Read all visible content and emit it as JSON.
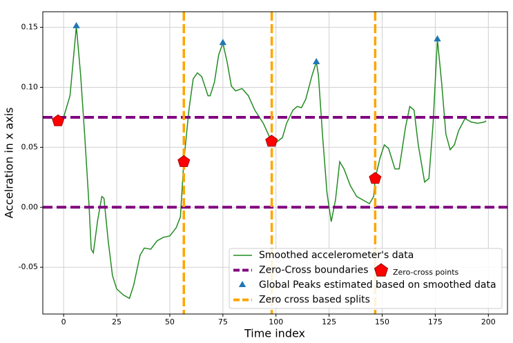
{
  "chart_data": {
    "type": "line",
    "xlabel": "Time index",
    "ylabel": "Accelration in x axis",
    "xlim": [
      -9.8,
      209
    ],
    "ylim": [
      -0.089,
      0.163
    ],
    "xticks": [
      0,
      25,
      50,
      75,
      100,
      125,
      150,
      175,
      200
    ],
    "yticks": [
      {
        "value": -0.05,
        "label": "-0.05"
      },
      {
        "value": 0,
        "label": "0.00"
      },
      {
        "value": 0.05,
        "label": "0.05"
      },
      {
        "value": 0.1,
        "label": "0.10"
      },
      {
        "value": 0.15,
        "label": "0.15"
      }
    ],
    "grid": true,
    "legend": "lower right",
    "series": [
      {
        "type": "line",
        "name": "Smoothed accelerometer's data",
        "color": "#228b22",
        "x": [
          0,
          3,
          6,
          8,
          10,
          12,
          13,
          14,
          16,
          18,
          19,
          21,
          23,
          25,
          28,
          31,
          33,
          36,
          38,
          41,
          44,
          47,
          50,
          53,
          55,
          56.6,
          59,
          61,
          63,
          65,
          68,
          69,
          71,
          73,
          75,
          77,
          79,
          81,
          84,
          87,
          90,
          94,
          97.9,
          100,
          103,
          105,
          108,
          110,
          112,
          114,
          117,
          119,
          120,
          122,
          124,
          126,
          128,
          130,
          132,
          135,
          138,
          141,
          144,
          146,
          146.7,
          149,
          151,
          153,
          156,
          158,
          161,
          163,
          165,
          167,
          170,
          172,
          174,
          176,
          178,
          180,
          182,
          184,
          186,
          189,
          192,
          195,
          198,
          199
        ],
        "values": [
          0.075,
          0.093,
          0.151,
          0.11,
          0.058,
          0,
          -0.035,
          -0.038,
          -0.011,
          0.009,
          0.0075,
          -0.028,
          -0.057,
          -0.068,
          -0.073,
          -0.076,
          -0.065,
          -0.04,
          -0.034,
          -0.035,
          -0.028,
          -0.025,
          -0.024,
          -0.017,
          -0.008,
          0.038,
          0.081,
          0.107,
          0.112,
          0.109,
          0.093,
          0.093,
          0.104,
          0.127,
          0.137,
          0.121,
          0.101,
          0.097,
          0.099,
          0.093,
          0.081,
          0.07,
          0.055,
          0.054,
          0.058,
          0.07,
          0.081,
          0.084,
          0.083,
          0.09,
          0.11,
          0.121,
          0.11,
          0.058,
          0.012,
          -0.012,
          0.006,
          0.038,
          0.032,
          0.018,
          0.009,
          0.006,
          0.003,
          0.009,
          0.024,
          0.041,
          0.052,
          0.049,
          0.032,
          0.032,
          0.067,
          0.084,
          0.081,
          0.052,
          0.021,
          0.024,
          0.07,
          0.14,
          0.104,
          0.061,
          0.048,
          0.052,
          0.064,
          0.074,
          0.071,
          0.07,
          0.071,
          0.072
        ]
      },
      {
        "type": "hline",
        "name": "Zero-Cross boundaries",
        "color": "#800080",
        "values": [
          0.075,
          0
        ]
      },
      {
        "type": "scatter",
        "marker": "triangle",
        "name": "Global Peaks estimated based on smoothed data",
        "color": "#1f77b4",
        "x": [
          6,
          75,
          119,
          176
        ],
        "values": [
          0.151,
          0.137,
          0.121,
          0.14
        ]
      },
      {
        "type": "vline",
        "name": "Zero cross based splits",
        "color": "#ffa500",
        "x": [
          56.6,
          98,
          146.7
        ]
      },
      {
        "type": "scatter",
        "marker": "pentagon",
        "name": "Zero-cross points",
        "color": "#ff0000",
        "x": [
          -2.6,
          56.6,
          97.9,
          146.7
        ],
        "values": [
          0.072,
          0.038,
          0.055,
          0.024
        ]
      }
    ]
  }
}
